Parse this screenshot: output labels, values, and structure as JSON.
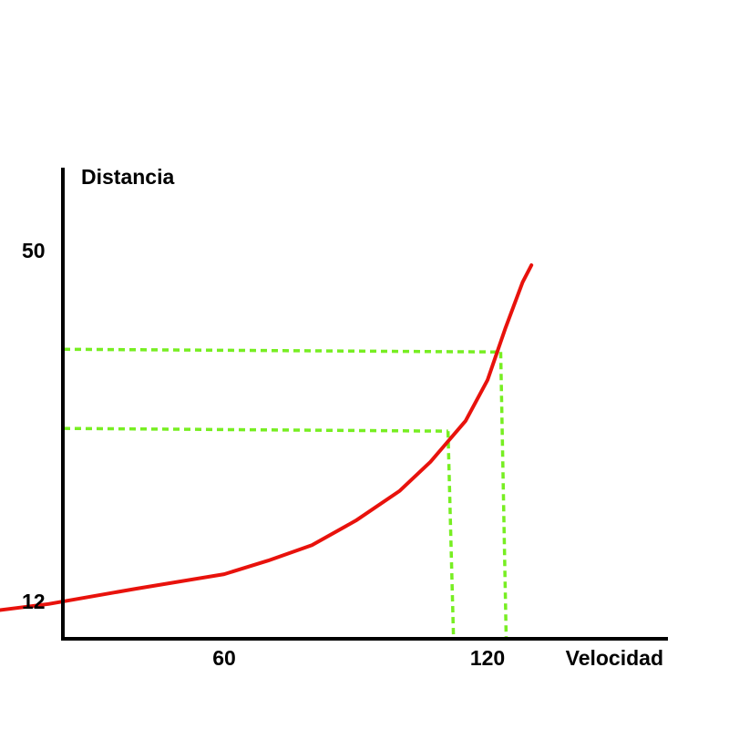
{
  "chart_data": {
    "type": "line",
    "xlabel": "Velocidad",
    "ylabel": "Distancia",
    "x_ticks": [
      {
        "value": 60,
        "label": "60"
      },
      {
        "value": 120,
        "label": "120"
      }
    ],
    "y_ticks": [
      {
        "value": 12,
        "label": "12"
      },
      {
        "value": 50,
        "label": "50"
      }
    ],
    "xlim": [
      0,
      185
    ],
    "ylim": [
      10.4,
      57
    ],
    "series": [
      {
        "color": "#e8120c",
        "points": [
          [
            0,
            10.4
          ],
          [
            20,
            11.7
          ],
          [
            40,
            13.5
          ],
          [
            60,
            15.2
          ],
          [
            70,
            16.8
          ],
          [
            80,
            18.6
          ],
          [
            90,
            21.5
          ],
          [
            100,
            25.0
          ],
          [
            107,
            28.4
          ],
          [
            110,
            30.2
          ],
          [
            115,
            33.2
          ],
          [
            120,
            38.0
          ],
          [
            124,
            44.0
          ],
          [
            128,
            49.5
          ],
          [
            130,
            51.5
          ]
        ]
      }
    ],
    "reference_lines": [
      {
        "x": 111,
        "y": 32.0,
        "color": "#77ee22",
        "style": "dashed"
      },
      {
        "x": 123,
        "y": 41.3,
        "color": "#77ee22",
        "style": "dashed"
      }
    ],
    "grid": false,
    "legend": "none"
  }
}
